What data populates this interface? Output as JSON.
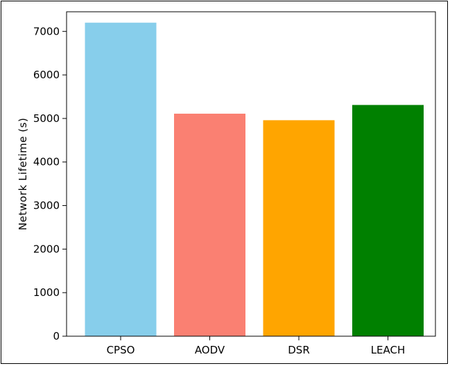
{
  "chart_data": {
    "type": "bar",
    "title": "",
    "xlabel": "",
    "ylabel": "Network Lifetime (s)",
    "categories": [
      "CPSO",
      "AODV",
      "DSR",
      "LEACH"
    ],
    "values": [
      7200,
      5110,
      4960,
      5310
    ],
    "colors": [
      "#87ceeb",
      "#fa8072",
      "#ffa500",
      "#008000"
    ],
    "ylim": [
      0,
      7450
    ],
    "yticks": [
      0,
      1000,
      2000,
      3000,
      4000,
      5000,
      6000,
      7000
    ],
    "grid": false,
    "legend": "none"
  }
}
